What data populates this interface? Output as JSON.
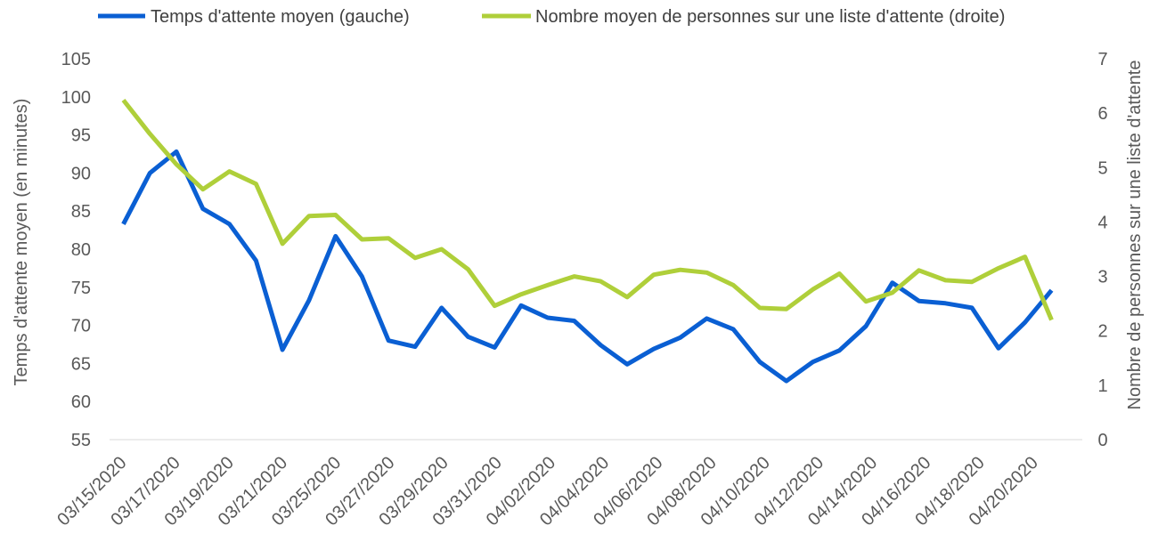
{
  "chart_data": {
    "type": "line",
    "title": "",
    "x_tick_labels": [
      "03/15/2020",
      "03/17/2020",
      "03/19/2020",
      "03/21/2020",
      "03/25/2020",
      "03/27/2020",
      "03/29/2020",
      "03/31/2020",
      "04/02/2020",
      "04/04/2020",
      "04/06/2020",
      "04/08/2020",
      "04/10/2020",
      "04/12/2020",
      "04/14/2020",
      "04/16/2020",
      "04/18/2020",
      "04/20/2020"
    ],
    "left_axis": {
      "label": "Temps d'attente moyen (en minutes)",
      "ylim": [
        55,
        105
      ],
      "ticks": [
        "55",
        "60",
        "65",
        "70",
        "75",
        "80",
        "85",
        "90",
        "95",
        "100",
        "105"
      ]
    },
    "right_axis": {
      "label": "Nombre de personnes sur une liste d'attente",
      "ylim": [
        0,
        7
      ],
      "ticks": [
        "0",
        "1",
        "2",
        "3",
        "4",
        "5",
        "6",
        "7"
      ]
    },
    "legend_position": "top",
    "grid": false,
    "series": [
      {
        "name": "Temps d'attente moyen (gauche)",
        "axis": "left",
        "color": "#0A5FD3",
        "values": [
          83.3,
          90.0,
          92.8,
          85.3,
          83.3,
          78.5,
          66.8,
          73.3,
          81.7,
          76.4,
          68.0,
          67.2,
          72.3,
          68.5,
          67.1,
          72.6,
          71.0,
          70.6,
          67.4,
          64.9,
          66.9,
          68.4,
          70.9,
          69.5,
          65.2,
          62.7,
          65.2,
          66.7,
          69.9,
          75.6,
          73.2,
          72.9,
          72.3,
          67.0,
          70.4,
          74.6
        ]
      },
      {
        "name": "Nombre moyen de personnes sur une liste d'attente (droite)",
        "axis": "right",
        "color": "#AFCF3A",
        "values": [
          6.24,
          5.62,
          5.06,
          4.6,
          4.93,
          4.7,
          3.6,
          4.11,
          4.13,
          3.68,
          3.7,
          3.34,
          3.5,
          3.13,
          2.46,
          2.67,
          2.84,
          3.0,
          2.91,
          2.62,
          3.03,
          3.12,
          3.07,
          2.84,
          2.42,
          2.4,
          2.76,
          3.05,
          2.54,
          2.7,
          3.11,
          2.93,
          2.9,
          3.15,
          3.36,
          2.2
        ]
      }
    ]
  }
}
